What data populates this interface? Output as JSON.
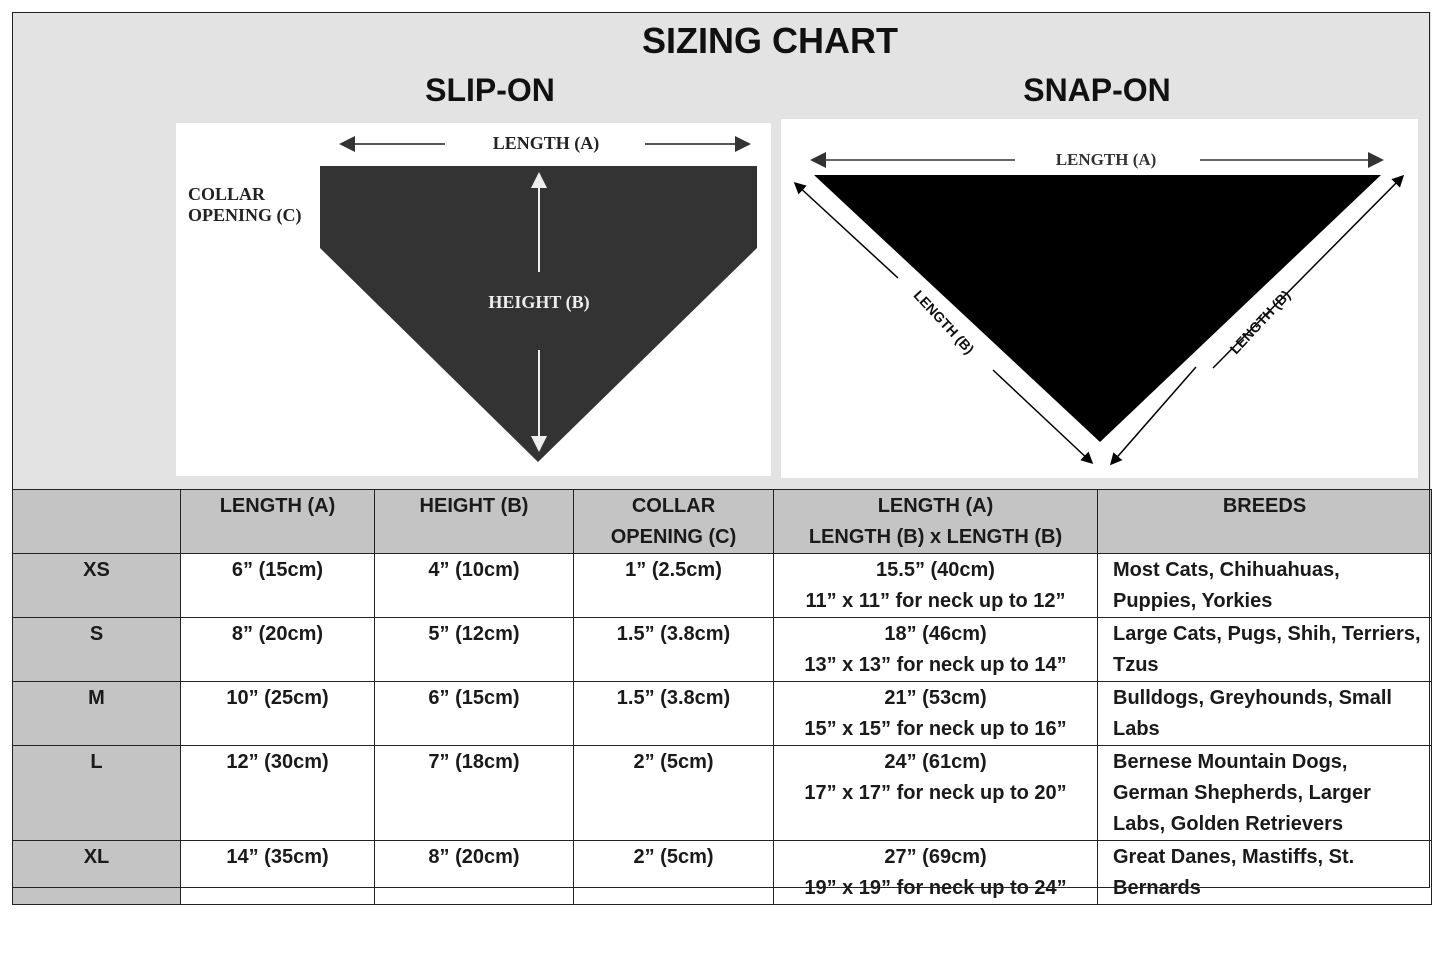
{
  "title": "SIZING CHART",
  "slip_on": {
    "heading": "SLIP-ON",
    "length_label": "LENGTH (A)",
    "collar_label_1": "COLLAR",
    "collar_label_2": "OPENING (C)",
    "height_label": "HEIGHT (B)"
  },
  "snap_on": {
    "heading": "SNAP-ON",
    "length_a_label": "LENGTH (A)",
    "length_b_left_label": "LENGTH (B)",
    "length_b_right_label": "LENGTH (B)"
  },
  "colors": {
    "panel_bg": "#e3e3e3",
    "header_bg": "#c4c4c4",
    "slip_on_fill": "#333333",
    "snap_on_fill": "#000000"
  },
  "table": {
    "headers": [
      "",
      "LENGTH (A)",
      "HEIGHT (B)",
      "COLLAR OPENING (C)",
      "LENGTH (A) LENGTH (B) x LENGTH (B)",
      "BREEDS"
    ],
    "header_lines": {
      "collar_1": "COLLAR",
      "collar_2": "OPENING (C)",
      "snap_1": "LENGTH (A)",
      "snap_2": "LENGTH (B) x LENGTH (B)"
    },
    "rows": [
      {
        "size": "XS",
        "length": "6” (15cm)",
        "height": "4” (10cm)",
        "collar": "1” (2.5cm)",
        "snap_length": "15.5” (40cm)",
        "snap_neck": "11” x 11” for neck up to 12”",
        "breeds": "Most Cats, Chihuahuas, Puppies, Yorkies"
      },
      {
        "size": "S",
        "length": "8” (20cm)",
        "height": "5” (12cm)",
        "collar": "1.5” (3.8cm)",
        "snap_length": "18” (46cm)",
        "snap_neck": "13” x 13” for neck up to 14”",
        "breeds": "Large Cats, Pugs, Shih, Terriers, Tzus"
      },
      {
        "size": "M",
        "length": "10” (25cm)",
        "height": "6” (15cm)",
        "collar": "1.5” (3.8cm)",
        "snap_length": "21” (53cm)",
        "snap_neck": "15” x 15” for neck up to 16”",
        "breeds": "Bulldogs, Greyhounds, Small Labs"
      },
      {
        "size": "L",
        "length": "12” (30cm)",
        "height": "7” (18cm)",
        "collar": "2” (5cm)",
        "snap_length": "24” (61cm)",
        "snap_neck": "17” x 17” for neck up to 20”",
        "breeds": "Bernese Mountain Dogs, German Shepherds, Larger Labs, Golden Retrievers"
      },
      {
        "size": "XL",
        "length": "14” (35cm)",
        "height": "8” (20cm)",
        "collar": "2” (5cm)",
        "snap_length": "27” (69cm)",
        "snap_neck": "19” x 19” for neck up to 24”",
        "breeds": "Great Danes, Mastiffs, St. Bernards"
      }
    ]
  }
}
